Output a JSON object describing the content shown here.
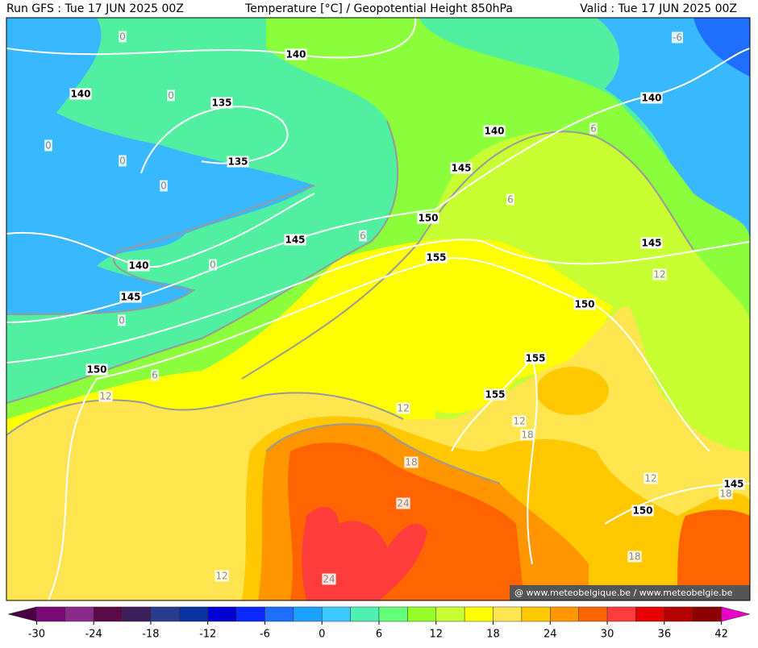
{
  "header": {
    "run": "Run GFS : Tue 17 JUN 2025 00Z",
    "title": "Temperature [°C] / Geopotential Height 850hPa",
    "valid": "Valid : Tue 17 JUN 2025 00Z"
  },
  "height_contours": {
    "labels": [
      "140",
      "140",
      "135",
      "135",
      "140",
      "145",
      "150",
      "145",
      "140",
      "145",
      "155",
      "150",
      "140",
      "145",
      "155",
      "155",
      "150",
      "145",
      "150"
    ]
  },
  "temperature_contours": {
    "labels": [
      "0",
      "0",
      "0",
      "0",
      "0",
      "0",
      "0",
      "6",
      "6",
      "6",
      "6",
      "12",
      "12",
      "12",
      "12",
      "18",
      "18",
      "24",
      "12",
      "18",
      "18",
      "12",
      "24",
      "-6"
    ]
  },
  "credit": "@ www.meteobelgique.be / www.meteobelgie.be",
  "colorbar": {
    "lim": [
      -33,
      45
    ],
    "ticks": [
      -30,
      -24,
      -18,
      -12,
      -6,
      0,
      6,
      12,
      18,
      24,
      30,
      36,
      42
    ],
    "colors": [
      "#4b0046",
      "#7a0a78",
      "#8a2a8a",
      "#5a0a46",
      "#3c1e5a",
      "#2a3c8c",
      "#0a32a0",
      "#0000d2",
      "#0a28ff",
      "#1e6eff",
      "#1ea0ff",
      "#3cc8ff",
      "#50f0b4",
      "#64ff78",
      "#96ff28",
      "#c8ff32",
      "#ffff00",
      "#ffe650",
      "#ffc800",
      "#ff9600",
      "#ff6400",
      "#ff3c3c",
      "#e60000",
      "#b40000",
      "#8c0000",
      "#e600c8"
    ]
  }
}
